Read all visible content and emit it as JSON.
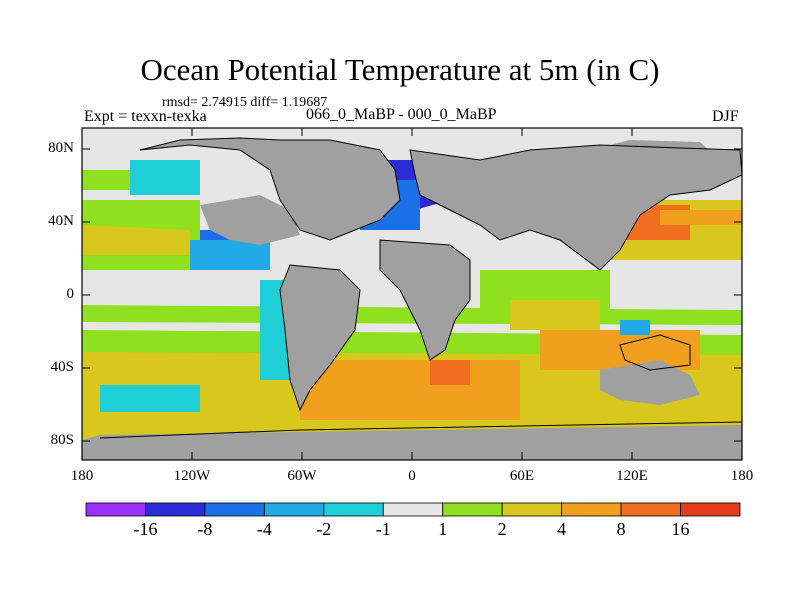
{
  "figure": {
    "title": "Ocean Potential Temperature at 5m (in C)",
    "stats": "rmsd= 2.74915 diff= 1.19687",
    "left_label": "Expt = texxn-texka",
    "center_label": "066_0_MaBP - 000_0_MaBP",
    "right_label": "DJF"
  },
  "axes": {
    "y_ticks": [
      "80N",
      "40N",
      "0",
      "40S",
      "80S"
    ],
    "x_ticks": [
      "180",
      "120W",
      "60W",
      "0",
      "60E",
      "120E",
      "180"
    ]
  },
  "colorbar": {
    "labels": [
      "-16",
      "-8",
      "-4",
      "-2",
      "-1",
      "1",
      "2",
      "4",
      "8",
      "16"
    ],
    "colors": [
      "#9b30ff",
      "#2b2bd8",
      "#1a70e6",
      "#22aae6",
      "#1ecfd8",
      "#e6e6e6",
      "#8fe01e",
      "#d8c81e",
      "#f0a01e",
      "#f06e1e",
      "#e63c1e"
    ]
  },
  "chart_data": {
    "type": "heatmap",
    "title": "Ocean Potential Temperature at 5m (in C)",
    "xlim": [
      -180,
      180
    ],
    "ylim": [
      -90,
      90
    ],
    "x_ticks": [
      "180",
      "120W",
      "60W",
      "0",
      "60E",
      "120E",
      "180"
    ],
    "y_ticks": [
      "80N",
      "40N",
      "0",
      "40S",
      "80S"
    ],
    "levels": [
      -16,
      -8,
      -4,
      -2,
      -1,
      1,
      2,
      4,
      8,
      16
    ],
    "land_color": "#a0a0a0"
  }
}
